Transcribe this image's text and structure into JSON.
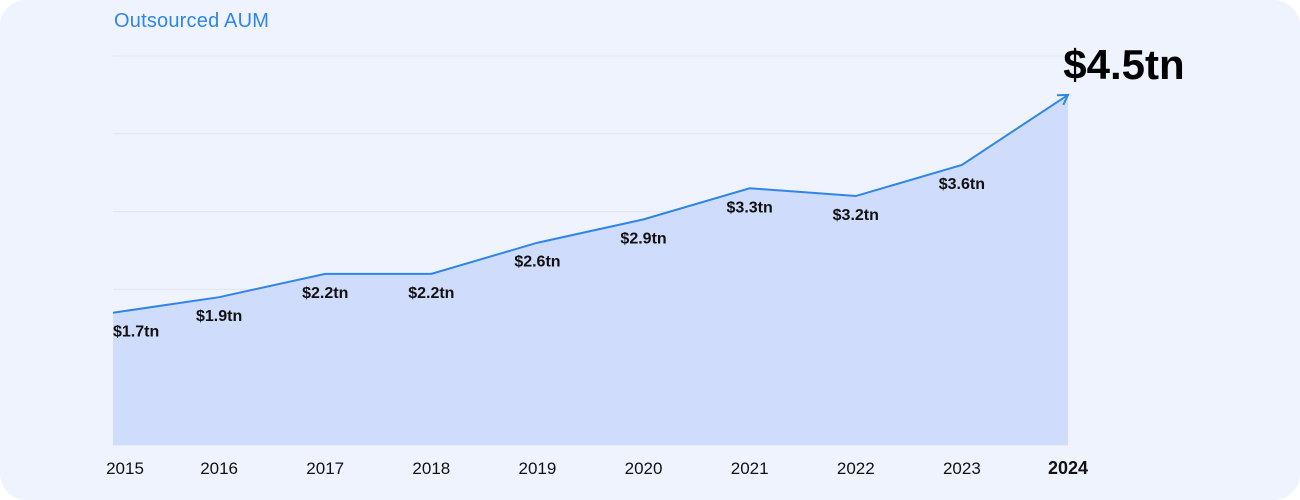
{
  "chart_data": {
    "type": "area",
    "title": "Outsourced AUM",
    "categories": [
      "2015",
      "2016",
      "2017",
      "2018",
      "2019",
      "2020",
      "2021",
      "2022",
      "2023",
      "2024"
    ],
    "values": [
      1.7,
      1.9,
      2.2,
      2.2,
      2.6,
      2.9,
      3.3,
      3.2,
      3.6,
      4.5
    ],
    "labels": [
      "$1.7tn",
      "$1.9tn",
      "$2.2tn",
      "$2.2tn",
      "$2.6tn",
      "$2.9tn",
      "$3.3tn",
      "$3.2tn",
      "$3.6tn",
      "$4.5tn"
    ],
    "unit": "tn",
    "ylim": [
      0,
      5
    ],
    "grid": true,
    "highlight_category": "2024",
    "colors": {
      "line": "#2f86e8",
      "area": "#cfdcfb",
      "card": "#eff3fe",
      "grid": "#dfe4f4"
    }
  }
}
